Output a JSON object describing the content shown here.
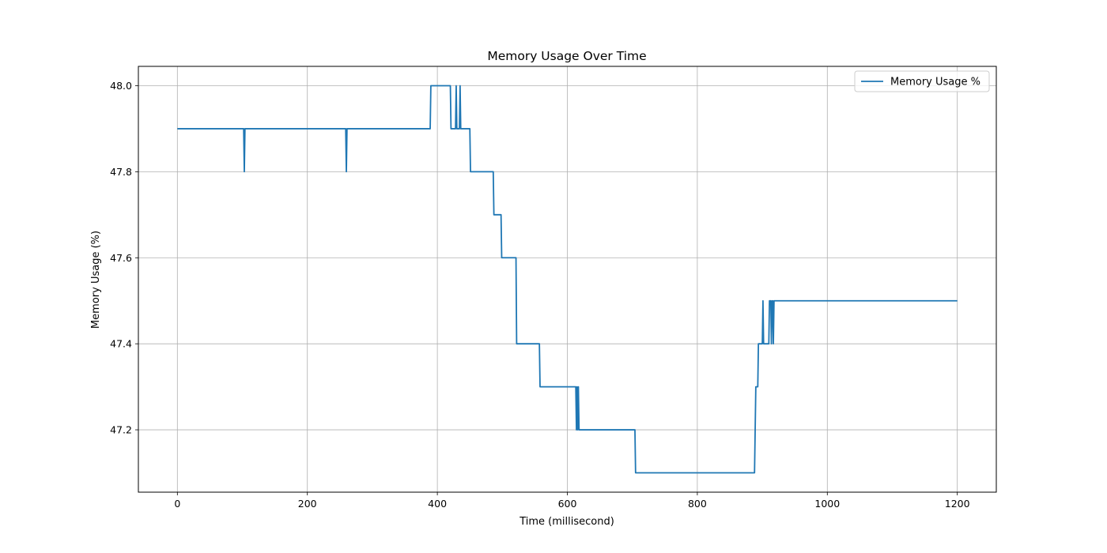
{
  "chart_data": {
    "type": "line",
    "title": "Memory Usage Over Time",
    "xlabel": "Time (millisecond)",
    "ylabel": "Memory Usage (%)",
    "xlim": [
      -60,
      1260
    ],
    "ylim": [
      47.055,
      48.045
    ],
    "xticks": [
      0,
      200,
      400,
      600,
      800,
      1000,
      1200
    ],
    "yticks": [
      47.2,
      47.4,
      47.6,
      47.8,
      48.0
    ],
    "ytick_labels": [
      "47.2",
      "47.4",
      "47.6",
      "47.8",
      "48.0"
    ],
    "grid": true,
    "legend_position": "top-right",
    "colors": {
      "series": "#1f77b4",
      "grid": "#b0b0b0",
      "axes": "#000000"
    },
    "series": [
      {
        "name": "Memory Usage %",
        "x": [
          0,
          102,
          103,
          104,
          105,
          259,
          260,
          261,
          389,
          390,
          420,
          421,
          428,
          429,
          430,
          431,
          434,
          435,
          436,
          437,
          450,
          451,
          486,
          487,
          498,
          499,
          521,
          522,
          557,
          558,
          613,
          614,
          615,
          616,
          617,
          618,
          704,
          705,
          888,
          889,
          890,
          891,
          893,
          894,
          900,
          901,
          902,
          903,
          910,
          911,
          913,
          914,
          915,
          916,
          917,
          918,
          919,
          920,
          1200
        ],
        "y": [
          47.9,
          47.9,
          47.8,
          47.9,
          47.9,
          47.9,
          47.8,
          47.9,
          47.9,
          48.0,
          48.0,
          47.9,
          47.9,
          48.0,
          47.9,
          47.9,
          47.9,
          48.0,
          47.9,
          47.9,
          47.9,
          47.8,
          47.8,
          47.7,
          47.7,
          47.6,
          47.6,
          47.4,
          47.4,
          47.3,
          47.3,
          47.2,
          47.3,
          47.2,
          47.3,
          47.2,
          47.2,
          47.1,
          47.1,
          47.2,
          47.3,
          47.3,
          47.3,
          47.4,
          47.4,
          47.5,
          47.4,
          47.4,
          47.4,
          47.5,
          47.5,
          47.4,
          47.5,
          47.5,
          47.4,
          47.5,
          47.5,
          47.5,
          47.5
        ]
      }
    ]
  }
}
